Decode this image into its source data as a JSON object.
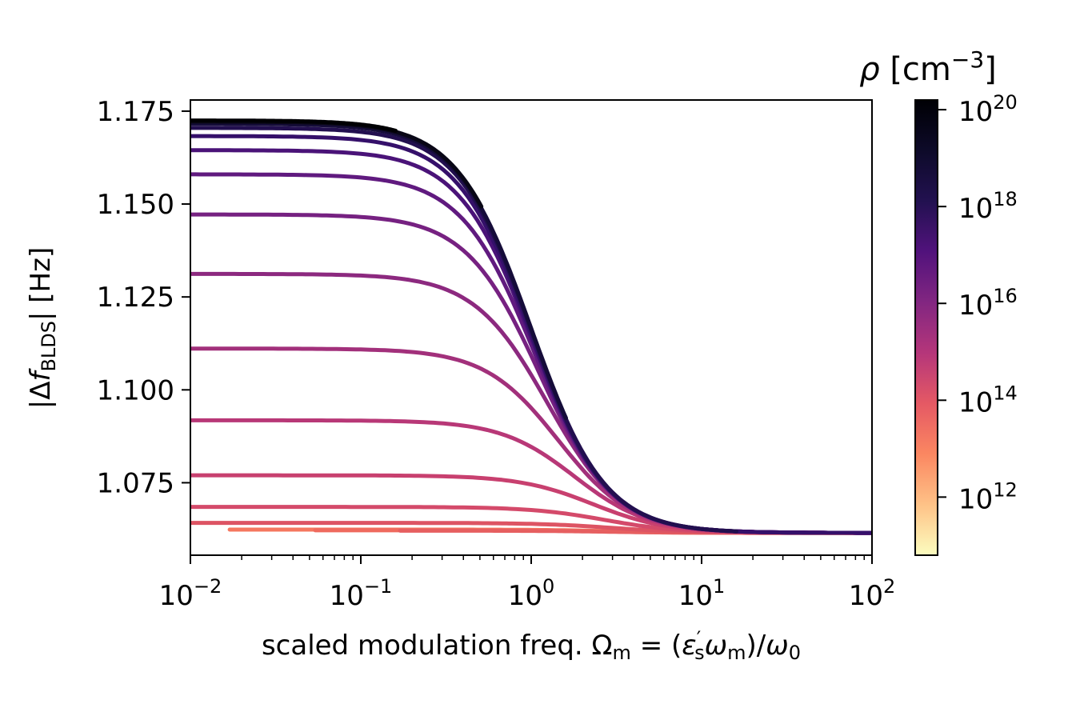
{
  "chart_data": {
    "type": "line",
    "xscale": "log",
    "xlim": [
      0.01,
      100
    ],
    "ylim": [
      1.0555,
      1.178
    ],
    "xlabel": "scaled modulation freq. Ωm = (ε′s ωm)/ω0",
    "ylabel": "|Δf BLDS| [Hz]",
    "x_ticks": [
      {
        "value": 0.01,
        "base": "10",
        "exp": "−2"
      },
      {
        "value": 0.1,
        "base": "10",
        "exp": "−1"
      },
      {
        "value": 1,
        "base": "10",
        "exp": "0"
      },
      {
        "value": 10,
        "base": "10",
        "exp": "1"
      },
      {
        "value": 100,
        "base": "10",
        "exp": "2"
      }
    ],
    "y_ticks": [
      {
        "value": 1.075,
        "label": "1.075"
      },
      {
        "value": 1.1,
        "label": "1.100"
      },
      {
        "value": 1.125,
        "label": "1.125"
      },
      {
        "value": 1.15,
        "label": "1.150"
      },
      {
        "value": 1.175,
        "label": "1.175"
      }
    ],
    "colorbar": {
      "label": "ρ [cm⁻³]",
      "scale": "log",
      "colormap": "magma_r",
      "range_log10": [
        10.8,
        20.2
      ],
      "ticks": [
        {
          "value": 1000000000000.0,
          "base": "10",
          "exp": "12"
        },
        {
          "value": 100000000000000.0,
          "base": "10",
          "exp": "14"
        },
        {
          "value": 1e+16,
          "base": "10",
          "exp": "16"
        },
        {
          "value": 1e+18,
          "base": "10",
          "exp": "18"
        },
        {
          "value": 1e+20,
          "base": "10",
          "exp": "20"
        }
      ],
      "gradient_stops": [
        "#fcfdbf",
        "#fec287",
        "#fb8761",
        "#e55964",
        "#b5367a",
        "#822681",
        "#51127c",
        "#221150",
        "#0d0a29",
        "#000004"
      ]
    },
    "series": [
      {
        "log10_rho": 13.5,
        "color": "#f5775f",
        "plateau": 1.0624,
        "x_start": 0.017,
        "x_end": 100,
        "x_mid": 3.0
      },
      {
        "log10_rho": 14.0,
        "color": "#ef6a5e",
        "plateau": 1.0622,
        "x_start": 0.054,
        "x_end": 100,
        "x_mid": 3.0
      },
      {
        "log10_rho": 14.5,
        "color": "#e65f60",
        "plateau": 1.0621,
        "x_start": 0.17,
        "x_end": 100,
        "x_mid": 3.0
      },
      {
        "log10_rho": 14.8,
        "color": "#dd5463",
        "plateau": 1.0642,
        "x_start": 0.01,
        "x_end": 100,
        "x_mid": 3.0
      },
      {
        "log10_rho": 15.2,
        "color": "#d44a6a",
        "plateau": 1.0685,
        "x_start": 0.01,
        "x_end": 100,
        "x_mid": 2.7
      },
      {
        "log10_rho": 15.6,
        "color": "#c8406f",
        "plateau": 1.077,
        "x_start": 0.01,
        "x_end": 100,
        "x_mid": 2.3
      },
      {
        "log10_rho": 16.0,
        "color": "#b83877",
        "plateau": 1.0918,
        "x_start": 0.01,
        "x_end": 100,
        "x_mid": 1.8
      },
      {
        "log10_rho": 16.4,
        "color": "#a2307b",
        "plateau": 1.1111,
        "x_start": 0.01,
        "x_end": 100,
        "x_mid": 1.45
      },
      {
        "log10_rho": 16.8,
        "color": "#8c297f",
        "plateau": 1.1312,
        "x_start": 0.01,
        "x_end": 100,
        "x_mid": 1.25
      },
      {
        "log10_rho": 17.2,
        "color": "#762181",
        "plateau": 1.1472,
        "x_start": 0.01,
        "x_end": 100,
        "x_mid": 1.12
      },
      {
        "log10_rho": 17.6,
        "color": "#601a7f",
        "plateau": 1.158,
        "x_start": 0.01,
        "x_end": 100,
        "x_mid": 1.05
      },
      {
        "log10_rho": 18.0,
        "color": "#4a1378",
        "plateau": 1.1645,
        "x_start": 0.01,
        "x_end": 100,
        "x_mid": 1.02
      },
      {
        "log10_rho": 18.4,
        "color": "#35106a",
        "plateau": 1.1683,
        "x_start": 0.01,
        "x_end": 100,
        "x_mid": 1.0
      },
      {
        "log10_rho": 18.8,
        "color": "#220f4f",
        "plateau": 1.1705,
        "x_start": 0.01,
        "x_end": 16,
        "x_mid": 1.0
      },
      {
        "log10_rho": 19.2,
        "color": "#150c39",
        "plateau": 1.1716,
        "x_start": 0.01,
        "x_end": 1.6,
        "x_mid": 1.0
      },
      {
        "log10_rho": 19.6,
        "color": "#090716",
        "plateau": 1.1722,
        "x_start": 0.01,
        "x_end": 0.51,
        "x_mid": 1.0
      },
      {
        "log10_rho": 20.0,
        "color": "#000004",
        "plateau": 1.1725,
        "x_start": 0.01,
        "x_end": 0.16,
        "x_mid": 1.0
      }
    ],
    "asymptote": 1.0615
  }
}
